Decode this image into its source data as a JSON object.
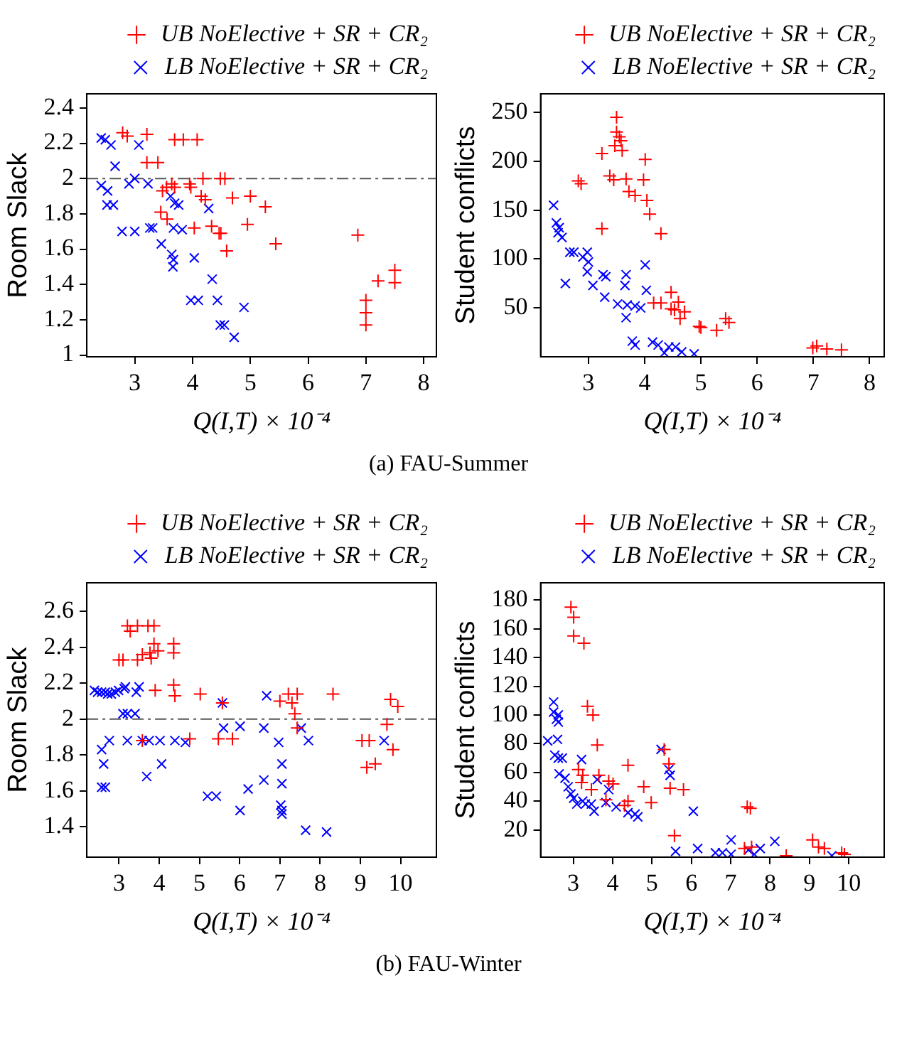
{
  "chart_data": [
    {
      "type": "scatter",
      "ylabel": "Room Slack",
      "xlabel": "Q(I,T) × 10⁻⁴",
      "xlim": [
        2.17,
        8.22
      ],
      "xticks": [
        3,
        4,
        5,
        6,
        7,
        8
      ],
      "ylim": [
        0.99,
        2.48
      ],
      "yticks": [
        1,
        1.2,
        1.4,
        1.6,
        1.8,
        2,
        2.2,
        2.4
      ],
      "grid": false,
      "legend": "top right",
      "ref_lines": [
        {
          "axis": "y",
          "value": 2,
          "color": "#555555",
          "line_style": "dashed"
        }
      ],
      "annotations": [
        "(a) FAU-Summer"
      ],
      "series": [
        {
          "name": "UB NoElective + SR + CR₂",
          "color": "#ff0000",
          "marker": "cross",
          "x": [
            2.79,
            2.87,
            3.21,
            3.69,
            3.84,
            4.08,
            3.21,
            3.4,
            4.18,
            4.48,
            4.56,
            3.48,
            3.55,
            3.64,
            3.69,
            3.95,
            3.97,
            4.15,
            4.22,
            4.69,
            5.0,
            5.26,
            3.45,
            3.56,
            4.03,
            4.33,
            4.46,
            4.49,
            4.95,
            5.44,
            4.59,
            6.86,
            7.0,
            7.0,
            7.0,
            7.21,
            7.5,
            7.5
          ],
          "values": [
            2.26,
            2.24,
            2.25,
            2.22,
            2.22,
            2.22,
            2.09,
            2.09,
            2.0,
            2.0,
            2.0,
            1.93,
            1.95,
            1.97,
            1.95,
            1.97,
            1.95,
            1.9,
            1.88,
            1.89,
            1.9,
            1.84,
            1.81,
            1.77,
            1.72,
            1.73,
            1.69,
            1.69,
            1.74,
            1.63,
            1.59,
            1.68,
            1.31,
            1.24,
            1.17,
            1.42,
            1.48,
            1.41
          ]
        },
        {
          "name": "LB NoElective + SR + CR₂",
          "color": "#0000ff",
          "marker": "x",
          "x": [
            2.42,
            2.49,
            2.59,
            3.07,
            2.66,
            2.42,
            2.53,
            3.0,
            2.9,
            3.23,
            2.52,
            2.63,
            2.78,
            3.0,
            3.26,
            3.31,
            3.46,
            3.62,
            3.69,
            3.76,
            4.28,
            3.67,
            3.82,
            3.64,
            3.67,
            3.66,
            4.03,
            4.34,
            3.97,
            4.1,
            4.43,
            4.48,
            4.55,
            4.89,
            4.72
          ],
          "values": [
            2.23,
            2.22,
            2.19,
            2.19,
            2.07,
            1.96,
            1.93,
            2.0,
            1.97,
            1.97,
            1.85,
            1.85,
            1.7,
            1.7,
            1.72,
            1.72,
            1.63,
            1.9,
            1.86,
            1.85,
            1.83,
            1.72,
            1.71,
            1.57,
            1.54,
            1.5,
            1.55,
            1.43,
            1.31,
            1.31,
            1.31,
            1.17,
            1.17,
            1.27,
            1.1
          ]
        }
      ]
    },
    {
      "type": "scatter",
      "ylabel": "Student conflicts",
      "xlabel": "Q(I,T) × 10⁻⁴",
      "xlim": [
        2.15,
        8.26
      ],
      "xticks": [
        3,
        4,
        5,
        6,
        7,
        8
      ],
      "ylim": [
        0,
        269
      ],
      "yticks": [
        50,
        100,
        150,
        200,
        250
      ],
      "grid": false,
      "legend": "top right",
      "series": [
        {
          "name": "UB NoElective + SR + CR₂",
          "color": "#ff0000",
          "marker": "cross",
          "x": [
            3.5,
            3.5,
            3.55,
            3.58,
            3.47,
            3.6,
            3.24,
            4.01,
            2.82,
            2.87,
            3.38,
            3.45,
            3.67,
            3.98,
            3.72,
            3.83,
            4.04,
            4.09,
            3.24,
            4.29,
            4.16,
            4.29,
            4.47,
            4.47,
            4.53,
            4.6,
            4.71,
            4.63,
            4.97,
            5.0,
            5.28,
            5.44,
            5.5,
            6.99,
            7.06,
            7.24,
            7.5
          ],
          "values": [
            245,
            230,
            225,
            221,
            216,
            211,
            208,
            202,
            180,
            177,
            185,
            181,
            182,
            181,
            169,
            165,
            160,
            146,
            131,
            126,
            55,
            55,
            66,
            49,
            48,
            56,
            46,
            39,
            31,
            30,
            27,
            39,
            35,
            9,
            11,
            8,
            7
          ]
        },
        {
          "name": "LB NoElective + SR + CR₂",
          "color": "#0000ff",
          "marker": "x",
          "x": [
            2.38,
            2.43,
            2.48,
            2.46,
            2.53,
            2.67,
            2.74,
            2.98,
            2.9,
            3.0,
            2.98,
            2.59,
            3.08,
            3.26,
            3.31,
            3.29,
            3.52,
            3.67,
            3.65,
            4.01,
            4.03,
            3.69,
            3.83,
            3.93,
            3.67,
            3.78,
            3.83,
            4.14,
            4.24,
            4.43,
            4.55,
            4.35,
            4.66,
            4.88
          ],
          "values": [
            155,
            137,
            132,
            127,
            122,
            107,
            107,
            107,
            102,
            97,
            87,
            75,
            73,
            84,
            82,
            61,
            54,
            84,
            73,
            94,
            68,
            53,
            52,
            50,
            40,
            16,
            12,
            15,
            12,
            10,
            10,
            4,
            5,
            3
          ]
        }
      ]
    },
    {
      "type": "scatter",
      "ylabel": "Room Slack",
      "xlabel": "Q(I,T) × 10⁻⁴",
      "xlim": [
        2.2,
        10.89
      ],
      "xticks": [
        3,
        4,
        5,
        6,
        7,
        8,
        9,
        10
      ],
      "ylim": [
        1.23,
        2.76
      ],
      "yticks": [
        1.4,
        1.6,
        1.8,
        2,
        2.2,
        2.4,
        2.6
      ],
      "grid": false,
      "legend": "top right",
      "ref_lines": [
        {
          "axis": "y",
          "value": 2,
          "color": "#555555",
          "line_style": "dashed"
        }
      ],
      "annotations": [
        "(b) FAU-Winter"
      ],
      "series": [
        {
          "name": "UB NoElective + SR + CR₂",
          "color": "#ff0000",
          "marker": "cross",
          "x": [
            3.0,
            3.1,
            3.21,
            3.28,
            3.46,
            3.72,
            3.87,
            3.46,
            3.58,
            3.8,
            3.77,
            3.87,
            3.97,
            4.36,
            4.36,
            3.9,
            4.36,
            4.39,
            5.02,
            5.57,
            5.47,
            5.82,
            4.76,
            3.58,
            7.21,
            7.43,
            7.0,
            7.3,
            7.37,
            7.43,
            8.32,
            9.75,
            9.93,
            9.66,
            9.04,
            9.22,
            9.16,
            9.37,
            9.81
          ],
          "values": [
            2.33,
            2.33,
            2.52,
            2.49,
            2.52,
            2.52,
            2.52,
            2.33,
            2.36,
            2.34,
            2.37,
            2.42,
            2.38,
            2.42,
            2.37,
            2.16,
            2.19,
            2.13,
            2.14,
            2.09,
            1.89,
            1.89,
            1.89,
            1.88,
            2.14,
            2.14,
            2.1,
            2.09,
            2.03,
            1.95,
            2.14,
            2.11,
            2.07,
            1.97,
            1.88,
            1.88,
            1.73,
            1.75,
            1.83
          ]
        },
        {
          "name": "LB NoElective + SR + CR₂",
          "color": "#0000ff",
          "marker": "x",
          "x": [
            2.39,
            2.57,
            2.72,
            2.99,
            3.13,
            2.47,
            2.66,
            2.81,
            2.91,
            3.5,
            3.16,
            3.43,
            3.1,
            3.21,
            3.4,
            2.76,
            3.21,
            3.58,
            3.75,
            4.02,
            4.39,
            4.65,
            5.6,
            6.01,
            6.6,
            6.97,
            7.71,
            7.53,
            6.67,
            5.57,
            2.57,
            2.62,
            2.57,
            2.66,
            3.69,
            4.06,
            5.2,
            5.42,
            6.01,
            6.21,
            6.6,
            7.05,
            7.05,
            7.02,
            7.05,
            7.05,
            7.64,
            8.16,
            9.59
          ],
          "values": [
            2.16,
            2.15,
            2.14,
            2.16,
            2.17,
            2.15,
            2.15,
            2.14,
            2.15,
            2.18,
            2.18,
            2.15,
            2.03,
            2.03,
            2.03,
            1.88,
            1.88,
            1.88,
            1.88,
            1.88,
            1.88,
            1.87,
            1.95,
            1.96,
            1.95,
            1.87,
            1.88,
            1.95,
            2.13,
            2.09,
            1.83,
            1.75,
            1.62,
            1.62,
            1.68,
            1.75,
            1.57,
            1.57,
            1.49,
            1.61,
            1.66,
            1.75,
            1.64,
            1.52,
            1.49,
            1.47,
            1.38,
            1.37,
            1.88
          ]
        }
      ]
    },
    {
      "type": "scatter",
      "ylabel": "Student conflicts",
      "xlabel": "Q(I,T) × 10⁻⁴",
      "xlim": [
        2.17,
        10.9
      ],
      "xticks": [
        3,
        4,
        5,
        6,
        7,
        8,
        9,
        10
      ],
      "ylim": [
        1,
        192
      ],
      "yticks": [
        20,
        40,
        60,
        80,
        100,
        120,
        140,
        160,
        180
      ],
      "grid": false,
      "legend": "top right",
      "series": [
        {
          "name": "UB NoElective + SR + CR₂",
          "color": "#ff0000",
          "marker": "cross",
          "x": [
            2.94,
            3.01,
            3.01,
            3.27,
            3.36,
            3.5,
            3.61,
            3.13,
            3.24,
            3.21,
            3.46,
            3.65,
            3.9,
            4.01,
            3.83,
            4.39,
            4.39,
            4.3,
            4.79,
            4.98,
            5.43,
            5.46,
            5.57,
            5.8,
            5.31,
            7.42,
            7.5,
            7.35,
            7.53,
            8.41,
            9.08,
            9.23,
            9.38,
            9.82,
            9.89
          ],
          "values": [
            175,
            168,
            155,
            150,
            106,
            100,
            79,
            62,
            58,
            53,
            48,
            58,
            54,
            52,
            41,
            65,
            40,
            37,
            50,
            39,
            66,
            49,
            16,
            48,
            76,
            36,
            35,
            7,
            8,
            2,
            13,
            8,
            7,
            4,
            3
          ]
        },
        {
          "name": "LB NoElective + SR + CR₂",
          "color": "#0000ff",
          "marker": "x",
          "x": [
            2.5,
            2.5,
            2.62,
            2.57,
            2.62,
            2.35,
            2.6,
            2.53,
            2.62,
            2.72,
            2.64,
            2.79,
            2.87,
            2.94,
            3.01,
            3.21,
            3.09,
            3.24,
            3.31,
            3.46,
            3.61,
            3.53,
            3.9,
            3.83,
            4.09,
            4.39,
            4.57,
            4.64,
            5.23,
            5.43,
            5.46,
            5.6,
            6.05,
            6.16,
            6.61,
            6.79,
            7.01,
            7.01,
            7.45,
            7.6,
            7.75,
            8.12,
            9.57
          ],
          "values": [
            109,
            102,
            100,
            97,
            95,
            82,
            83,
            72,
            70,
            70,
            59,
            56,
            50,
            45,
            42,
            69,
            38,
            40,
            38,
            38,
            55,
            33,
            48,
            39,
            36,
            32,
            31,
            29,
            76,
            62,
            58,
            5,
            33,
            7,
            4,
            4,
            13,
            3,
            6,
            3,
            7,
            12,
            2
          ]
        }
      ]
    }
  ]
}
